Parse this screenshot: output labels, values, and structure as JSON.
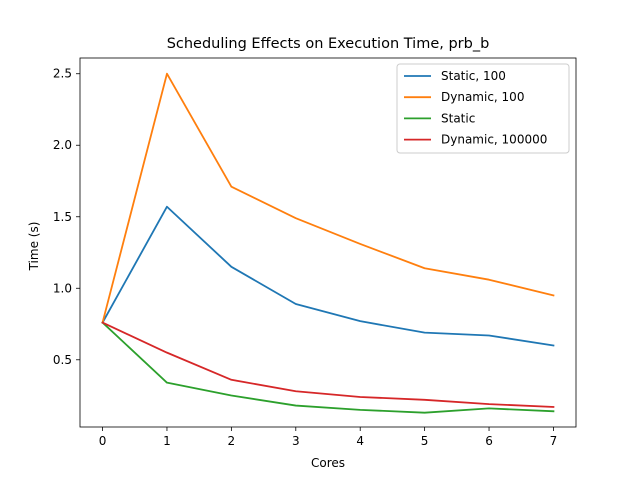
{
  "chart_data": {
    "type": "line",
    "title": "Scheduling Effects on Execution Time, prb_b",
    "xlabel": "Cores",
    "ylabel": "Time (s)",
    "x": [
      0,
      1,
      2,
      3,
      4,
      5,
      6,
      7
    ],
    "xlim": [
      -0.35,
      7.35
    ],
    "ylim": [
      0.03,
      2.61
    ],
    "xticks": [
      0,
      1,
      2,
      3,
      4,
      5,
      6,
      7
    ],
    "yticks": [
      0.5,
      1.0,
      1.5,
      2.0,
      2.5
    ],
    "ytick_labels": [
      "0.5",
      "1.0",
      "1.5",
      "2.0",
      "2.5"
    ],
    "grid": false,
    "legend_position": "top-right",
    "series": [
      {
        "name": "Static, 100",
        "color": "#1f77b4",
        "values": [
          0.76,
          1.57,
          1.15,
          0.89,
          0.77,
          0.69,
          0.67,
          0.6
        ]
      },
      {
        "name": "Dynamic, 100",
        "color": "#ff7f0e",
        "values": [
          0.76,
          2.5,
          1.71,
          1.49,
          1.31,
          1.14,
          1.06,
          0.95
        ]
      },
      {
        "name": "Static",
        "color": "#2ca02c",
        "values": [
          0.76,
          0.34,
          0.25,
          0.18,
          0.15,
          0.13,
          0.16,
          0.14
        ]
      },
      {
        "name": "Dynamic, 100000",
        "color": "#d62728",
        "values": [
          0.76,
          0.55,
          0.36,
          0.28,
          0.24,
          0.22,
          0.19,
          0.17
        ]
      }
    ]
  }
}
